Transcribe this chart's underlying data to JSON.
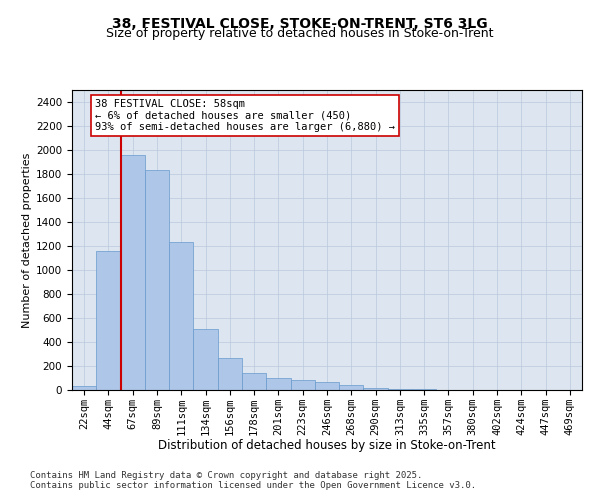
{
  "title1": "38, FESTIVAL CLOSE, STOKE-ON-TRENT, ST6 3LG",
  "title2": "Size of property relative to detached houses in Stoke-on-Trent",
  "xlabel": "Distribution of detached houses by size in Stoke-on-Trent",
  "ylabel": "Number of detached properties",
  "categories": [
    "22sqm",
    "44sqm",
    "67sqm",
    "89sqm",
    "111sqm",
    "134sqm",
    "156sqm",
    "178sqm",
    "201sqm",
    "223sqm",
    "246sqm",
    "268sqm",
    "290sqm",
    "313sqm",
    "335sqm",
    "357sqm",
    "380sqm",
    "402sqm",
    "424sqm",
    "447sqm",
    "469sqm"
  ],
  "values": [
    30,
    1160,
    1960,
    1830,
    1230,
    510,
    270,
    140,
    100,
    80,
    70,
    45,
    20,
    10,
    5,
    3,
    2,
    2,
    1,
    1,
    1
  ],
  "bar_color": "#aec6e8",
  "bar_edge_color": "#6699cc",
  "line_x_index": 1.5,
  "line_color": "#cc0000",
  "annotation_text": "38 FESTIVAL CLOSE: 58sqm\n← 6% of detached houses are smaller (450)\n93% of semi-detached houses are larger (6,880) →",
  "annotation_box_color": "#ffffff",
  "annotation_box_edge": "#cc0000",
  "ylim": [
    0,
    2500
  ],
  "yticks": [
    0,
    200,
    400,
    600,
    800,
    1000,
    1200,
    1400,
    1600,
    1800,
    2000,
    2200,
    2400
  ],
  "background_color": "#dde6f0",
  "footer1": "Contains HM Land Registry data © Crown copyright and database right 2025.",
  "footer2": "Contains public sector information licensed under the Open Government Licence v3.0.",
  "title1_fontsize": 10,
  "title2_fontsize": 9,
  "xlabel_fontsize": 8.5,
  "ylabel_fontsize": 8,
  "tick_fontsize": 7.5,
  "annotation_fontsize": 7.5,
  "footer_fontsize": 6.5
}
